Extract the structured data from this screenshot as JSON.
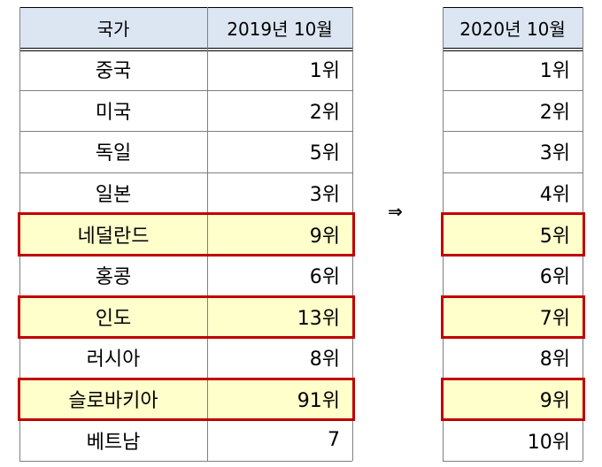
{
  "left_table": {
    "headers": [
      "국가",
      "2019년 10월"
    ],
    "rows": [
      {
        "country": "중국",
        "rank": "1위",
        "highlight": false
      },
      {
        "country": "미국",
        "rank": "2위",
        "highlight": false
      },
      {
        "country": "독일",
        "rank": "5위",
        "highlight": false
      },
      {
        "country": "일본",
        "rank": "3위",
        "highlight": false
      },
      {
        "country": "네덜란드",
        "rank": "9위",
        "highlight": true
      },
      {
        "country": "홍콩",
        "rank": "6위",
        "highlight": false
      },
      {
        "country": "인도",
        "rank": "13위",
        "highlight": true
      },
      {
        "country": "러시아",
        "rank": "8위",
        "highlight": false
      },
      {
        "country": "슬로바키아",
        "rank": "91위",
        "highlight": true
      },
      {
        "country": "베트남",
        "rank": "7",
        "highlight": false
      }
    ]
  },
  "arrow": "⇒",
  "right_table": {
    "header": "2020년 10월",
    "rows": [
      {
        "rank": "1위",
        "highlight": false
      },
      {
        "rank": "2위",
        "highlight": false
      },
      {
        "rank": "3위",
        "highlight": false
      },
      {
        "rank": "4위",
        "highlight": false
      },
      {
        "rank": "5위",
        "highlight": true
      },
      {
        "rank": "6위",
        "highlight": false
      },
      {
        "rank": "7위",
        "highlight": true
      },
      {
        "rank": "8위",
        "highlight": false
      },
      {
        "rank": "9위",
        "highlight": true
      },
      {
        "rank": "10위",
        "highlight": false
      }
    ]
  },
  "colors": {
    "header_bg": "#dce6f2",
    "highlight_bg": "#ffffcc",
    "highlight_border": "#c00000"
  }
}
